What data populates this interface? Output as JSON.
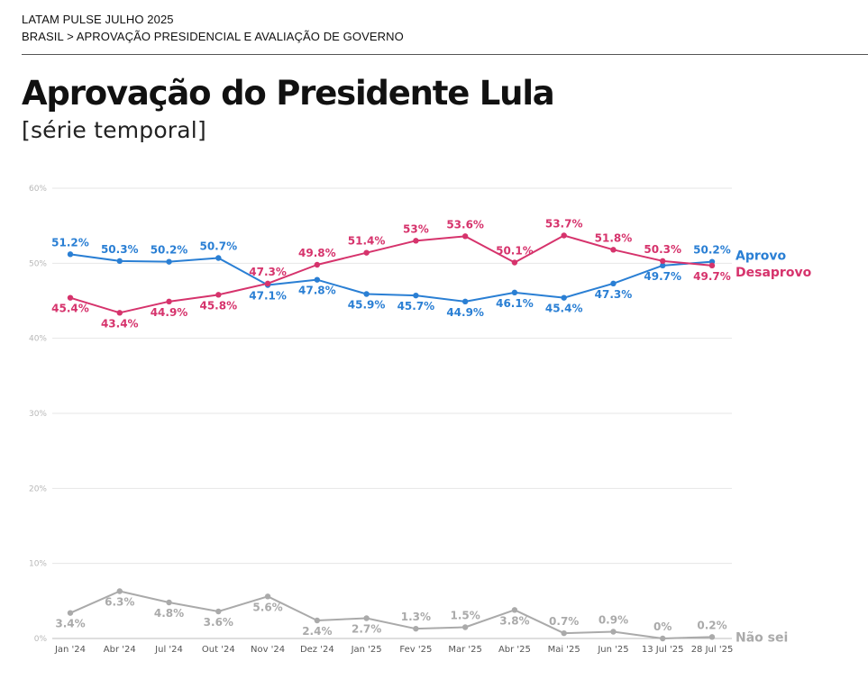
{
  "header": {
    "line1": "LATAM PULSE JULHO 2025",
    "line2": "BRASIL > APROVAÇÃO PRESIDENCIAL E AVALIAÇÃO DE GOVERNO"
  },
  "chart_data": {
    "type": "line",
    "title": "Aprovação do Presidente Lula",
    "subtitle": "[série temporal]",
    "categories": [
      "Jan '24",
      "Abr '24",
      "Jul '24",
      "Out '24",
      "Nov '24",
      "Dez '24",
      "Jan '25",
      "Fev '25",
      "Mar '25",
      "Abr '25",
      "Mai '25",
      "Jun '25",
      "13 Jul '25",
      "28 Jul '25"
    ],
    "y_ticks": [
      0,
      10,
      20,
      30,
      40,
      50,
      60
    ],
    "y_tick_labels": [
      "0%",
      "10%",
      "20%",
      "30%",
      "40%",
      "50%",
      "60%"
    ],
    "ylim": [
      0,
      60
    ],
    "grid": true,
    "series": [
      {
        "name": "Aprovo",
        "color": "#2a7fd4",
        "values": [
          51.2,
          50.3,
          50.2,
          50.7,
          47.1,
          47.8,
          45.9,
          45.7,
          44.9,
          46.1,
          45.4,
          47.3,
          49.7,
          50.2
        ],
        "labels": [
          "51.2%",
          "50.3%",
          "50.2%",
          "50.7%",
          "47.1%",
          "47.8%",
          "45.9%",
          "45.7%",
          "44.9%",
          "46.1%",
          "45.4%",
          "47.3%",
          "49.7%",
          "50.2%"
        ],
        "label_pos": [
          "above",
          "above",
          "above",
          "above",
          "below",
          "below",
          "below",
          "below",
          "below",
          "below",
          "below",
          "below",
          "below",
          "above"
        ]
      },
      {
        "name": "Desaprovo",
        "color": "#d6336c",
        "values": [
          45.4,
          43.4,
          44.9,
          45.8,
          47.3,
          49.8,
          51.4,
          53,
          53.6,
          50.1,
          53.7,
          51.8,
          50.3,
          49.7
        ],
        "labels": [
          "45.4%",
          "43.4%",
          "44.9%",
          "45.8%",
          "47.3%",
          "49.8%",
          "51.4%",
          "53%",
          "53.6%",
          "50.1%",
          "53.7%",
          "51.8%",
          "50.3%",
          "49.7%"
        ],
        "label_pos": [
          "below",
          "below",
          "below",
          "below",
          "above",
          "above",
          "above",
          "above",
          "above",
          "above",
          "above",
          "above",
          "above",
          "below"
        ]
      },
      {
        "name": "Não sei",
        "color": "#aaaaaa",
        "values": [
          3.4,
          6.3,
          4.8,
          3.6,
          5.6,
          2.4,
          2.7,
          1.3,
          1.5,
          3.8,
          0.7,
          0.9,
          0,
          0.2
        ],
        "labels": [
          "3.4%",
          "6.3%",
          "4.8%",
          "3.6%",
          "5.6%",
          "2.4%",
          "2.7%",
          "1.3%",
          "1.5%",
          "3.8%",
          "0.7%",
          "0.9%",
          "0%",
          "0.2%"
        ],
        "label_pos": [
          "below",
          "below",
          "below",
          "below",
          "below",
          "below",
          "below",
          "above",
          "above",
          "below",
          "above",
          "above",
          "above",
          "above"
        ]
      }
    ]
  }
}
